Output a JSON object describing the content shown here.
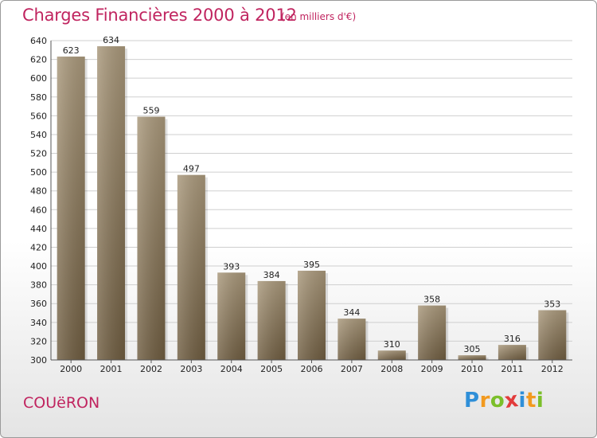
{
  "header": {
    "title": "Charges Financières 2000 à 2012",
    "subtitle": "(en milliers d'€)"
  },
  "footer": {
    "city": "COUëRON",
    "logo_letters": [
      "P",
      "r",
      "o",
      "x",
      "i",
      "t",
      "i"
    ],
    "logo_colors": [
      "#2f8fd8",
      "#f29a1f",
      "#7bbf2a",
      "#e23b3b",
      "#2f8fd8",
      "#f29a1f",
      "#7bbf2a"
    ]
  },
  "chart_data": {
    "type": "bar",
    "categories": [
      "2000",
      "2001",
      "2002",
      "2003",
      "2004",
      "2005",
      "2006",
      "2007",
      "2008",
      "2009",
      "2010",
      "2011",
      "2012"
    ],
    "values": [
      623,
      634,
      559,
      497,
      393,
      384,
      395,
      344,
      310,
      358,
      305,
      316,
      353
    ],
    "ylim": [
      300,
      640
    ],
    "yticks": [
      300,
      320,
      340,
      360,
      380,
      400,
      420,
      440,
      460,
      480,
      500,
      520,
      540,
      560,
      580,
      600,
      620,
      640
    ],
    "grid": true,
    "bar_color": "#8c7a5c"
  }
}
